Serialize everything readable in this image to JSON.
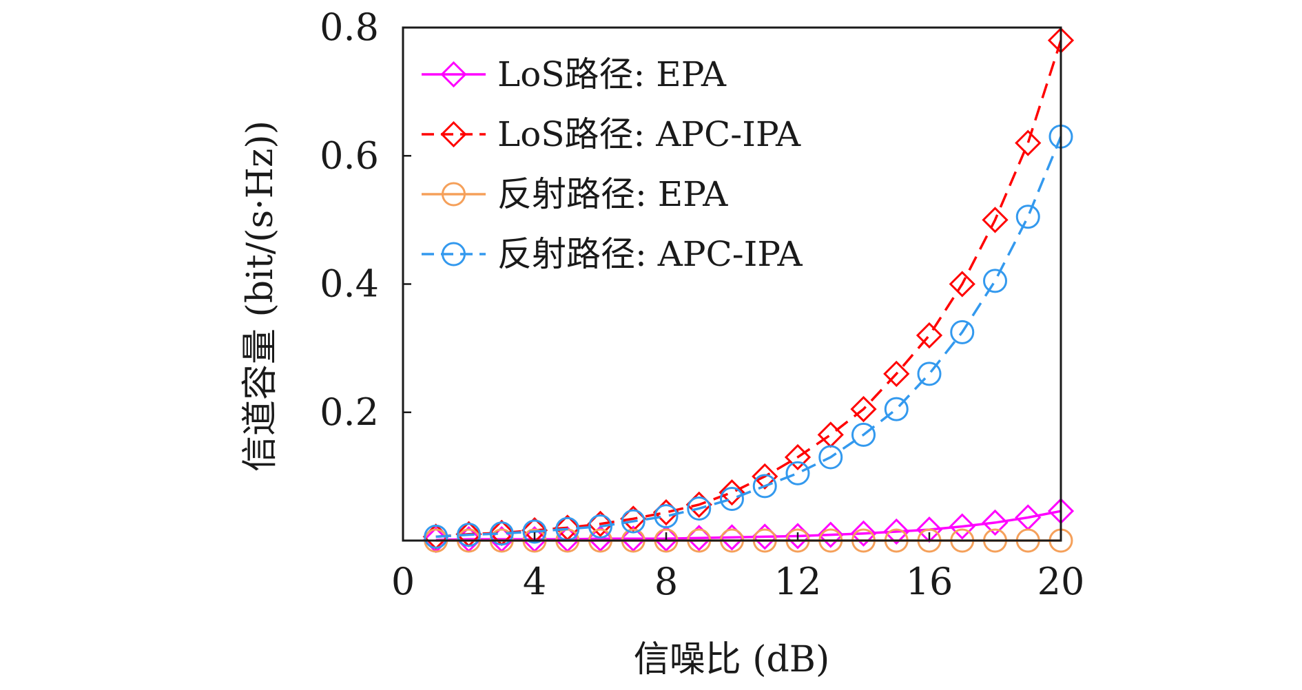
{
  "chart_data": {
    "type": "line",
    "xlabel": "信噪比 (dB)",
    "ylabel": "信道容量 (bit/(s·Hz))",
    "xlim": [
      0,
      20
    ],
    "ylim": [
      0,
      0.8
    ],
    "x_ticks": [
      "0",
      "4",
      "8",
      "12",
      "16",
      "20"
    ],
    "x_tick_values": [
      0,
      4,
      8,
      12,
      16,
      20
    ],
    "y_ticks": [
      "0.2",
      "0.4",
      "0.6",
      "0.8"
    ],
    "y_tick_values": [
      0.2,
      0.4,
      0.6,
      0.8
    ],
    "grid": false,
    "legend_position": "top-left",
    "x": [
      1,
      2,
      3,
      4,
      5,
      6,
      7,
      8,
      9,
      10,
      11,
      12,
      13,
      14,
      15,
      16,
      17,
      18,
      19,
      20
    ],
    "series": [
      {
        "name": "LoS路径: EPA",
        "color": "#ff00ff",
        "marker": "diamond",
        "dash": "solid",
        "values": [
          0.001,
          0.002,
          0.002,
          0.002,
          0.002,
          0.003,
          0.003,
          0.003,
          0.004,
          0.005,
          0.006,
          0.007,
          0.009,
          0.011,
          0.014,
          0.017,
          0.022,
          0.028,
          0.036,
          0.046
        ]
      },
      {
        "name": "LoS路径: APC-IPA",
        "color": "#ff0000",
        "marker": "diamond",
        "dash": "dashed",
        "values": [
          0.006,
          0.01,
          0.012,
          0.016,
          0.02,
          0.026,
          0.034,
          0.044,
          0.056,
          0.075,
          0.1,
          0.13,
          0.165,
          0.205,
          0.26,
          0.32,
          0.4,
          0.5,
          0.62,
          0.78
        ]
      },
      {
        "name": "反射路径: EPA",
        "color": "#f5a05a",
        "marker": "circle",
        "dash": "solid",
        "values": [
          0.0,
          0.0,
          0.0,
          0.0,
          0.0,
          0.0,
          0.0,
          0.0,
          0.0,
          0.0,
          0.0,
          0.0,
          0.0,
          0.0,
          0.0,
          0.0,
          0.0,
          0.0,
          0.0,
          0.0
        ]
      },
      {
        "name": "反射路径: APC-IPA",
        "color": "#3399ee",
        "marker": "circle",
        "dash": "dashed",
        "values": [
          0.006,
          0.009,
          0.011,
          0.014,
          0.018,
          0.022,
          0.03,
          0.038,
          0.05,
          0.065,
          0.085,
          0.105,
          0.13,
          0.165,
          0.205,
          0.26,
          0.325,
          0.405,
          0.505,
          0.63
        ]
      }
    ]
  }
}
